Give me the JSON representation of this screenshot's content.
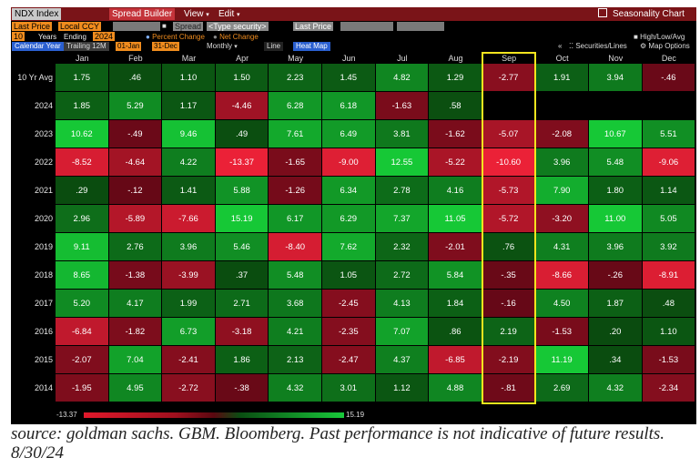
{
  "toolbar": {
    "ticker": "NDX Index",
    "spread_builder": "Spread Builder",
    "view_menu": "View",
    "edit_menu": "Edit",
    "chart_title": "Seasonality Chart",
    "field": "Last Price",
    "currency": "Local CCY",
    "type_security": "<Type security>",
    "field2": "Last Price",
    "spread_label": "Spread",
    "years_value": "10",
    "years_label": "Years",
    "ending_label": "Ending",
    "ending_value": "2024",
    "percent_change": "Percent Change",
    "net_change": "Net Change",
    "high_low_avg": "High/Low/Avg",
    "calendar_year": "Calendar Year",
    "trailing": "Trailing 12M",
    "start_date": "01-Jan",
    "end_date": "31-Dec",
    "period": "Monthly",
    "line_btn": "Line",
    "heatmap_btn": "Heat Map",
    "securities_lines": "Securities/Lines",
    "map_options": "Map Options"
  },
  "chart_data": {
    "type": "heatmap",
    "columns": [
      "Jan",
      "Feb",
      "Mar",
      "Apr",
      "May",
      "Jun",
      "Jul",
      "Aug",
      "Sep",
      "Oct",
      "Nov",
      "Dec"
    ],
    "rows": [
      "10 Yr Avg",
      "2024",
      "2023",
      "2022",
      "2021",
      "2020",
      "2019",
      "2018",
      "2017",
      "2016",
      "2015",
      "2014"
    ],
    "values": [
      [
        1.75,
        0.46,
        1.1,
        1.5,
        2.23,
        1.45,
        4.82,
        1.29,
        -2.77,
        1.91,
        3.94,
        -0.46
      ],
      [
        1.85,
        5.29,
        1.17,
        -4.46,
        6.28,
        6.18,
        -1.63,
        0.58,
        null,
        null,
        null,
        null
      ],
      [
        10.62,
        -0.49,
        9.46,
        0.49,
        7.61,
        6.49,
        3.81,
        -1.62,
        -5.07,
        -2.08,
        10.67,
        5.51
      ],
      [
        -8.52,
        -4.64,
        4.22,
        -13.37,
        -1.65,
        -9.0,
        12.55,
        -5.22,
        -10.6,
        3.96,
        5.48,
        -9.06
      ],
      [
        0.29,
        -0.12,
        1.41,
        5.88,
        -1.26,
        6.34,
        2.78,
        4.16,
        -5.73,
        7.9,
        1.8,
        1.14
      ],
      [
        2.96,
        -5.89,
        -7.66,
        15.19,
        6.17,
        6.29,
        7.37,
        11.05,
        -5.72,
        -3.2,
        11.0,
        5.05
      ],
      [
        9.11,
        2.76,
        3.96,
        5.46,
        -8.4,
        7.62,
        2.32,
        -2.01,
        0.76,
        4.31,
        3.96,
        3.92
      ],
      [
        8.65,
        -1.38,
        -3.99,
        0.37,
        5.48,
        1.05,
        2.72,
        5.84,
        -0.35,
        -8.66,
        -0.26,
        -8.91
      ],
      [
        5.2,
        4.17,
        1.99,
        2.71,
        3.68,
        -2.45,
        4.13,
        1.84,
        -0.16,
        4.5,
        1.87,
        0.48
      ],
      [
        -6.84,
        -1.82,
        6.73,
        -3.18,
        4.21,
        -2.35,
        7.07,
        0.86,
        2.19,
        -1.53,
        0.2,
        1.1
      ],
      [
        -2.07,
        7.04,
        -2.41,
        1.86,
        2.13,
        -2.47,
        4.37,
        -6.85,
        -2.19,
        11.19,
        0.34,
        -1.53
      ],
      [
        -1.95,
        4.95,
        -2.72,
        -0.38,
        4.32,
        3.01,
        1.12,
        4.88,
        -0.81,
        2.69,
        4.32,
        -2.34
      ]
    ],
    "labels": [
      [
        "1.75",
        ".46",
        "1.10",
        "1.50",
        "2.23",
        "1.45",
        "4.82",
        "1.29",
        "-2.77",
        "1.91",
        "3.94",
        "-.46"
      ],
      [
        "1.85",
        "5.29",
        "1.17",
        "-4.46",
        "6.28",
        "6.18",
        "-1.63",
        ".58",
        "",
        "",
        "",
        ""
      ],
      [
        "10.62",
        "-.49",
        "9.46",
        ".49",
        "7.61",
        "6.49",
        "3.81",
        "-1.62",
        "-5.07",
        "-2.08",
        "10.67",
        "5.51"
      ],
      [
        "-8.52",
        "-4.64",
        "4.22",
        "-13.37",
        "-1.65",
        "-9.00",
        "12.55",
        "-5.22",
        "-10.60",
        "3.96",
        "5.48",
        "-9.06"
      ],
      [
        ".29",
        "-.12",
        "1.41",
        "5.88",
        "-1.26",
        "6.34",
        "2.78",
        "4.16",
        "-5.73",
        "7.90",
        "1.80",
        "1.14"
      ],
      [
        "2.96",
        "-5.89",
        "-7.66",
        "15.19",
        "6.17",
        "6.29",
        "7.37",
        "11.05",
        "-5.72",
        "-3.20",
        "11.00",
        "5.05"
      ],
      [
        "9.11",
        "2.76",
        "3.96",
        "5.46",
        "-8.40",
        "7.62",
        "2.32",
        "-2.01",
        ".76",
        "4.31",
        "3.96",
        "3.92"
      ],
      [
        "8.65",
        "-1.38",
        "-3.99",
        ".37",
        "5.48",
        "1.05",
        "2.72",
        "5.84",
        "-.35",
        "-8.66",
        "-.26",
        "-8.91"
      ],
      [
        "5.20",
        "4.17",
        "1.99",
        "2.71",
        "3.68",
        "-2.45",
        "4.13",
        "1.84",
        "-.16",
        "4.50",
        "1.87",
        ".48"
      ],
      [
        "-6.84",
        "-1.82",
        "6.73",
        "-3.18",
        "4.21",
        "-2.35",
        "7.07",
        ".86",
        "2.19",
        "-1.53",
        ".20",
        "1.10"
      ],
      [
        "-2.07",
        "7.04",
        "-2.41",
        "1.86",
        "2.13",
        "-2.47",
        "4.37",
        "-6.85",
        "-2.19",
        "11.19",
        ".34",
        "-1.53"
      ],
      [
        "-1.95",
        "4.95",
        "-2.72",
        "-.38",
        "4.32",
        "3.01",
        "1.12",
        "4.88",
        "-.81",
        "2.69",
        "4.32",
        "-2.34"
      ]
    ],
    "scale_min": -13.37,
    "scale_max": 15.19,
    "scale_min_label": "-13.37",
    "scale_max_label": "15.19",
    "highlighted_column": "Sep",
    "colors": {
      "highlight": "#f4e51e"
    }
  },
  "caption": "source: goldman sachs. GBM. Bloomberg. Past performance is not indicative of future results. 8/30/24"
}
